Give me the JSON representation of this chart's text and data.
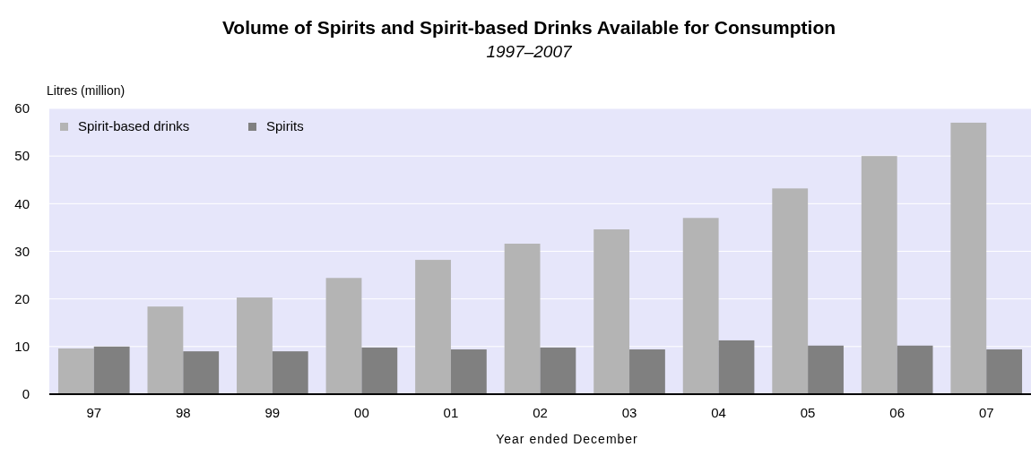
{
  "chart_data": {
    "type": "bar",
    "title": "Volume of Spirits and Spirit-based Drinks Available for Consumption",
    "subtitle": "1997–2007",
    "ylabel": "Litres (million)",
    "xlabel": "Year ended December",
    "categories": [
      "97",
      "98",
      "99",
      "00",
      "01",
      "02",
      "03",
      "04",
      "05",
      "06",
      "07"
    ],
    "series": [
      {
        "name": "Spirit-based drinks",
        "color": "#b4b4b4",
        "values": [
          9.6,
          18.4,
          20.3,
          24.4,
          28.2,
          31.6,
          34.6,
          37.0,
          43.2,
          50.0,
          57.0
        ]
      },
      {
        "name": "Spirits",
        "color": "#808080",
        "values": [
          10.0,
          9.0,
          9.0,
          9.8,
          9.4,
          9.8,
          9.4,
          11.3,
          10.2,
          10.2,
          9.4
        ]
      }
    ],
    "ylim": [
      0,
      60
    ],
    "yticks": [
      0,
      10,
      20,
      30,
      40,
      50,
      60
    ],
    "grid": "y",
    "legend": "top left"
  }
}
